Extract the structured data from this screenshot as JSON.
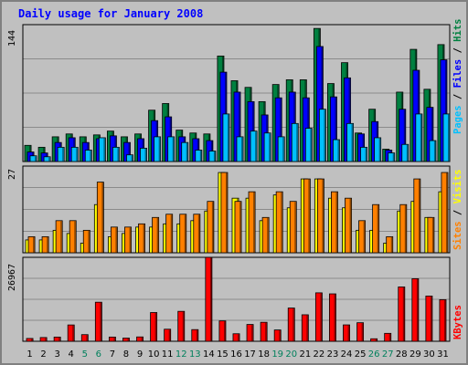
{
  "title": "Daily usage for January 2008",
  "chart_data": [
    {
      "type": "bar",
      "title": "Daily usage for January 2008",
      "categories": [
        "1",
        "2",
        "3",
        "4",
        "5",
        "6",
        "7",
        "8",
        "9",
        "10",
        "11",
        "12",
        "13",
        "14",
        "15",
        "16",
        "17",
        "18",
        "19",
        "20",
        "21",
        "22",
        "23",
        "24",
        "25",
        "26",
        "27",
        "28",
        "29",
        "30",
        "31"
      ],
      "weekend_days": [
        "5",
        "6",
        "12",
        "13",
        "19",
        "20",
        "26",
        "27"
      ],
      "max_label": "144",
      "ylim": [
        0,
        144
      ],
      "legend": [
        "Pages",
        "Files",
        "Hits"
      ],
      "series": [
        {
          "name": "Hits",
          "color": "#008040",
          "values": [
            17,
            15,
            26,
            29,
            26,
            28,
            32,
            26,
            29,
            54,
            61,
            33,
            30,
            29,
            111,
            85,
            78,
            63,
            81,
            86,
            86,
            140,
            82,
            104,
            30,
            55,
            13,
            73,
            118,
            76,
            123
          ]
        },
        {
          "name": "Files",
          "color": "#0000ff",
          "values": [
            10,
            9,
            20,
            25,
            20,
            24,
            27,
            20,
            24,
            43,
            47,
            26,
            24,
            22,
            94,
            73,
            63,
            49,
            67,
            73,
            67,
            121,
            68,
            88,
            29,
            42,
            12,
            55,
            96,
            57,
            107
          ]
        },
        {
          "name": "Pages",
          "color": "#00c0ff",
          "values": [
            6,
            5,
            15,
            15,
            12,
            25,
            15,
            7,
            14,
            26,
            26,
            20,
            12,
            11,
            50,
            26,
            32,
            30,
            26,
            40,
            35,
            55,
            23,
            40,
            15,
            25,
            9,
            18,
            50,
            22,
            50
          ]
        }
      ]
    },
    {
      "type": "bar",
      "max_label": "27",
      "ylim": [
        0,
        27
      ],
      "legend": [
        "Sites",
        "Visits"
      ],
      "series": [
        {
          "name": "Visits",
          "color": "#ffff00",
          "values": [
            4,
            4,
            7,
            6,
            3,
            15,
            5,
            6,
            8,
            8,
            9,
            9,
            10,
            13,
            25,
            17,
            17,
            10,
            18,
            14,
            23,
            23,
            17,
            14,
            7,
            7,
            3,
            13,
            16,
            11,
            19
          ]
        },
        {
          "name": "Sites",
          "color": "#ff8000",
          "values": [
            5,
            5,
            10,
            10,
            7,
            22,
            8,
            8,
            9,
            11,
            12,
            12,
            12,
            16,
            25,
            16,
            19,
            11,
            19,
            16,
            23,
            23,
            19,
            17,
            10,
            15,
            5,
            15,
            23,
            11,
            25
          ]
        }
      ]
    },
    {
      "type": "bar",
      "max_label": "26967",
      "ylim": [
        0,
        26967
      ],
      "legend": [
        "KBytes"
      ],
      "series": [
        {
          "name": "KBytes",
          "color": "#ff0000",
          "values": [
            905,
            1205,
            1350,
            5242,
            2133,
            12550,
            1350,
            1022,
            1395,
            9235,
            3875,
            9617,
            3750,
            26967,
            6550,
            2416,
            5400,
            6100,
            3637,
            10680,
            8512,
            15563,
            15231,
            5262,
            5962,
            805,
            2545,
            17453,
            20106,
            14531,
            13364
          ]
        }
      ]
    }
  ]
}
